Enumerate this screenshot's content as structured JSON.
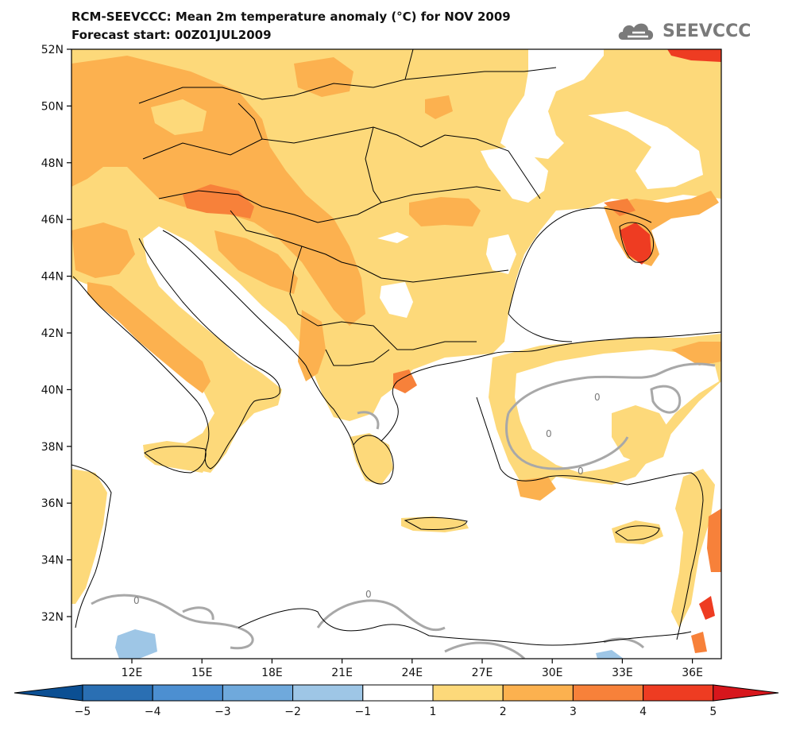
{
  "title": {
    "line1": "RCM-SEEVCCC: Mean 2m temperature anomaly (°C) for NOV 2009",
    "line2": "Forecast start: 00Z01JUL2009"
  },
  "logo": {
    "text": "SEEVCCC",
    "icon": "cloud-logo-icon"
  },
  "map": {
    "lat_labels": [
      "52N",
      "50N",
      "48N",
      "46N",
      "44N",
      "42N",
      "40N",
      "38N",
      "36N",
      "34N",
      "32N"
    ],
    "lon_labels": [
      "12E",
      "15E",
      "18E",
      "21E",
      "24E",
      "27E",
      "30E",
      "33E",
      "36E"
    ],
    "contour_labels": [
      "0",
      "0",
      "0",
      "0",
      "0"
    ]
  },
  "colorbar": {
    "labels": [
      "−5",
      "−4",
      "−3",
      "−2",
      "−1",
      "1",
      "2",
      "3",
      "4",
      "5"
    ],
    "colors": [
      "#0b4f93",
      "#2a6fb3",
      "#4c8fd1",
      "#6fa9dc",
      "#9ec6e6",
      "#ffffff",
      "#fdd97a",
      "#fcb14f",
      "#f7813a",
      "#ee3c22",
      "#d7161c"
    ]
  },
  "palette": {
    "warm1": "#fdd97a",
    "warm2": "#fcb14f",
    "warm3": "#f7813a",
    "hot": "#ee3c22",
    "cold1": "#9ec6e6",
    "contour": "#a8a8a8"
  }
}
